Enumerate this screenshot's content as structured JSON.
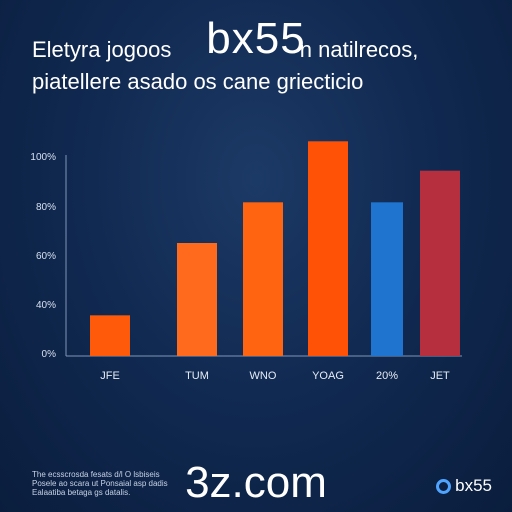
{
  "watermark_top": "bx55",
  "watermark_bottom": "3z.com",
  "brand": {
    "label": "bx55",
    "color": "#4ea4ff"
  },
  "footnote": [
    "The ecsscrosda fesats d/l O lsbiseis",
    "Posele ao scara ut Ponsaial asp dadis",
    "Ealaatiba betaga gs datalis."
  ],
  "chart_data": {
    "type": "bar",
    "title": [
      "Eletyra jogoos",
      "n natilrecos,"
    ],
    "subtitle": "piatellere asado os cane griecticio",
    "xlabel": "",
    "ylabel": "",
    "categories": [
      "JFE",
      "TUM",
      "WNO",
      "YOAG",
      "20%",
      "JET"
    ],
    "values": [
      18,
      50,
      68,
      95,
      68,
      82
    ],
    "colors": [
      "#ff5a0a",
      "#ff6a1c",
      "#ff6410",
      "#ff5206",
      "#1e74cf",
      "#b52f3e"
    ],
    "yticks": [
      "0%",
      "40%",
      "60%",
      "80%",
      "100%"
    ],
    "ylim": [
      0,
      100
    ],
    "grid": false
  }
}
